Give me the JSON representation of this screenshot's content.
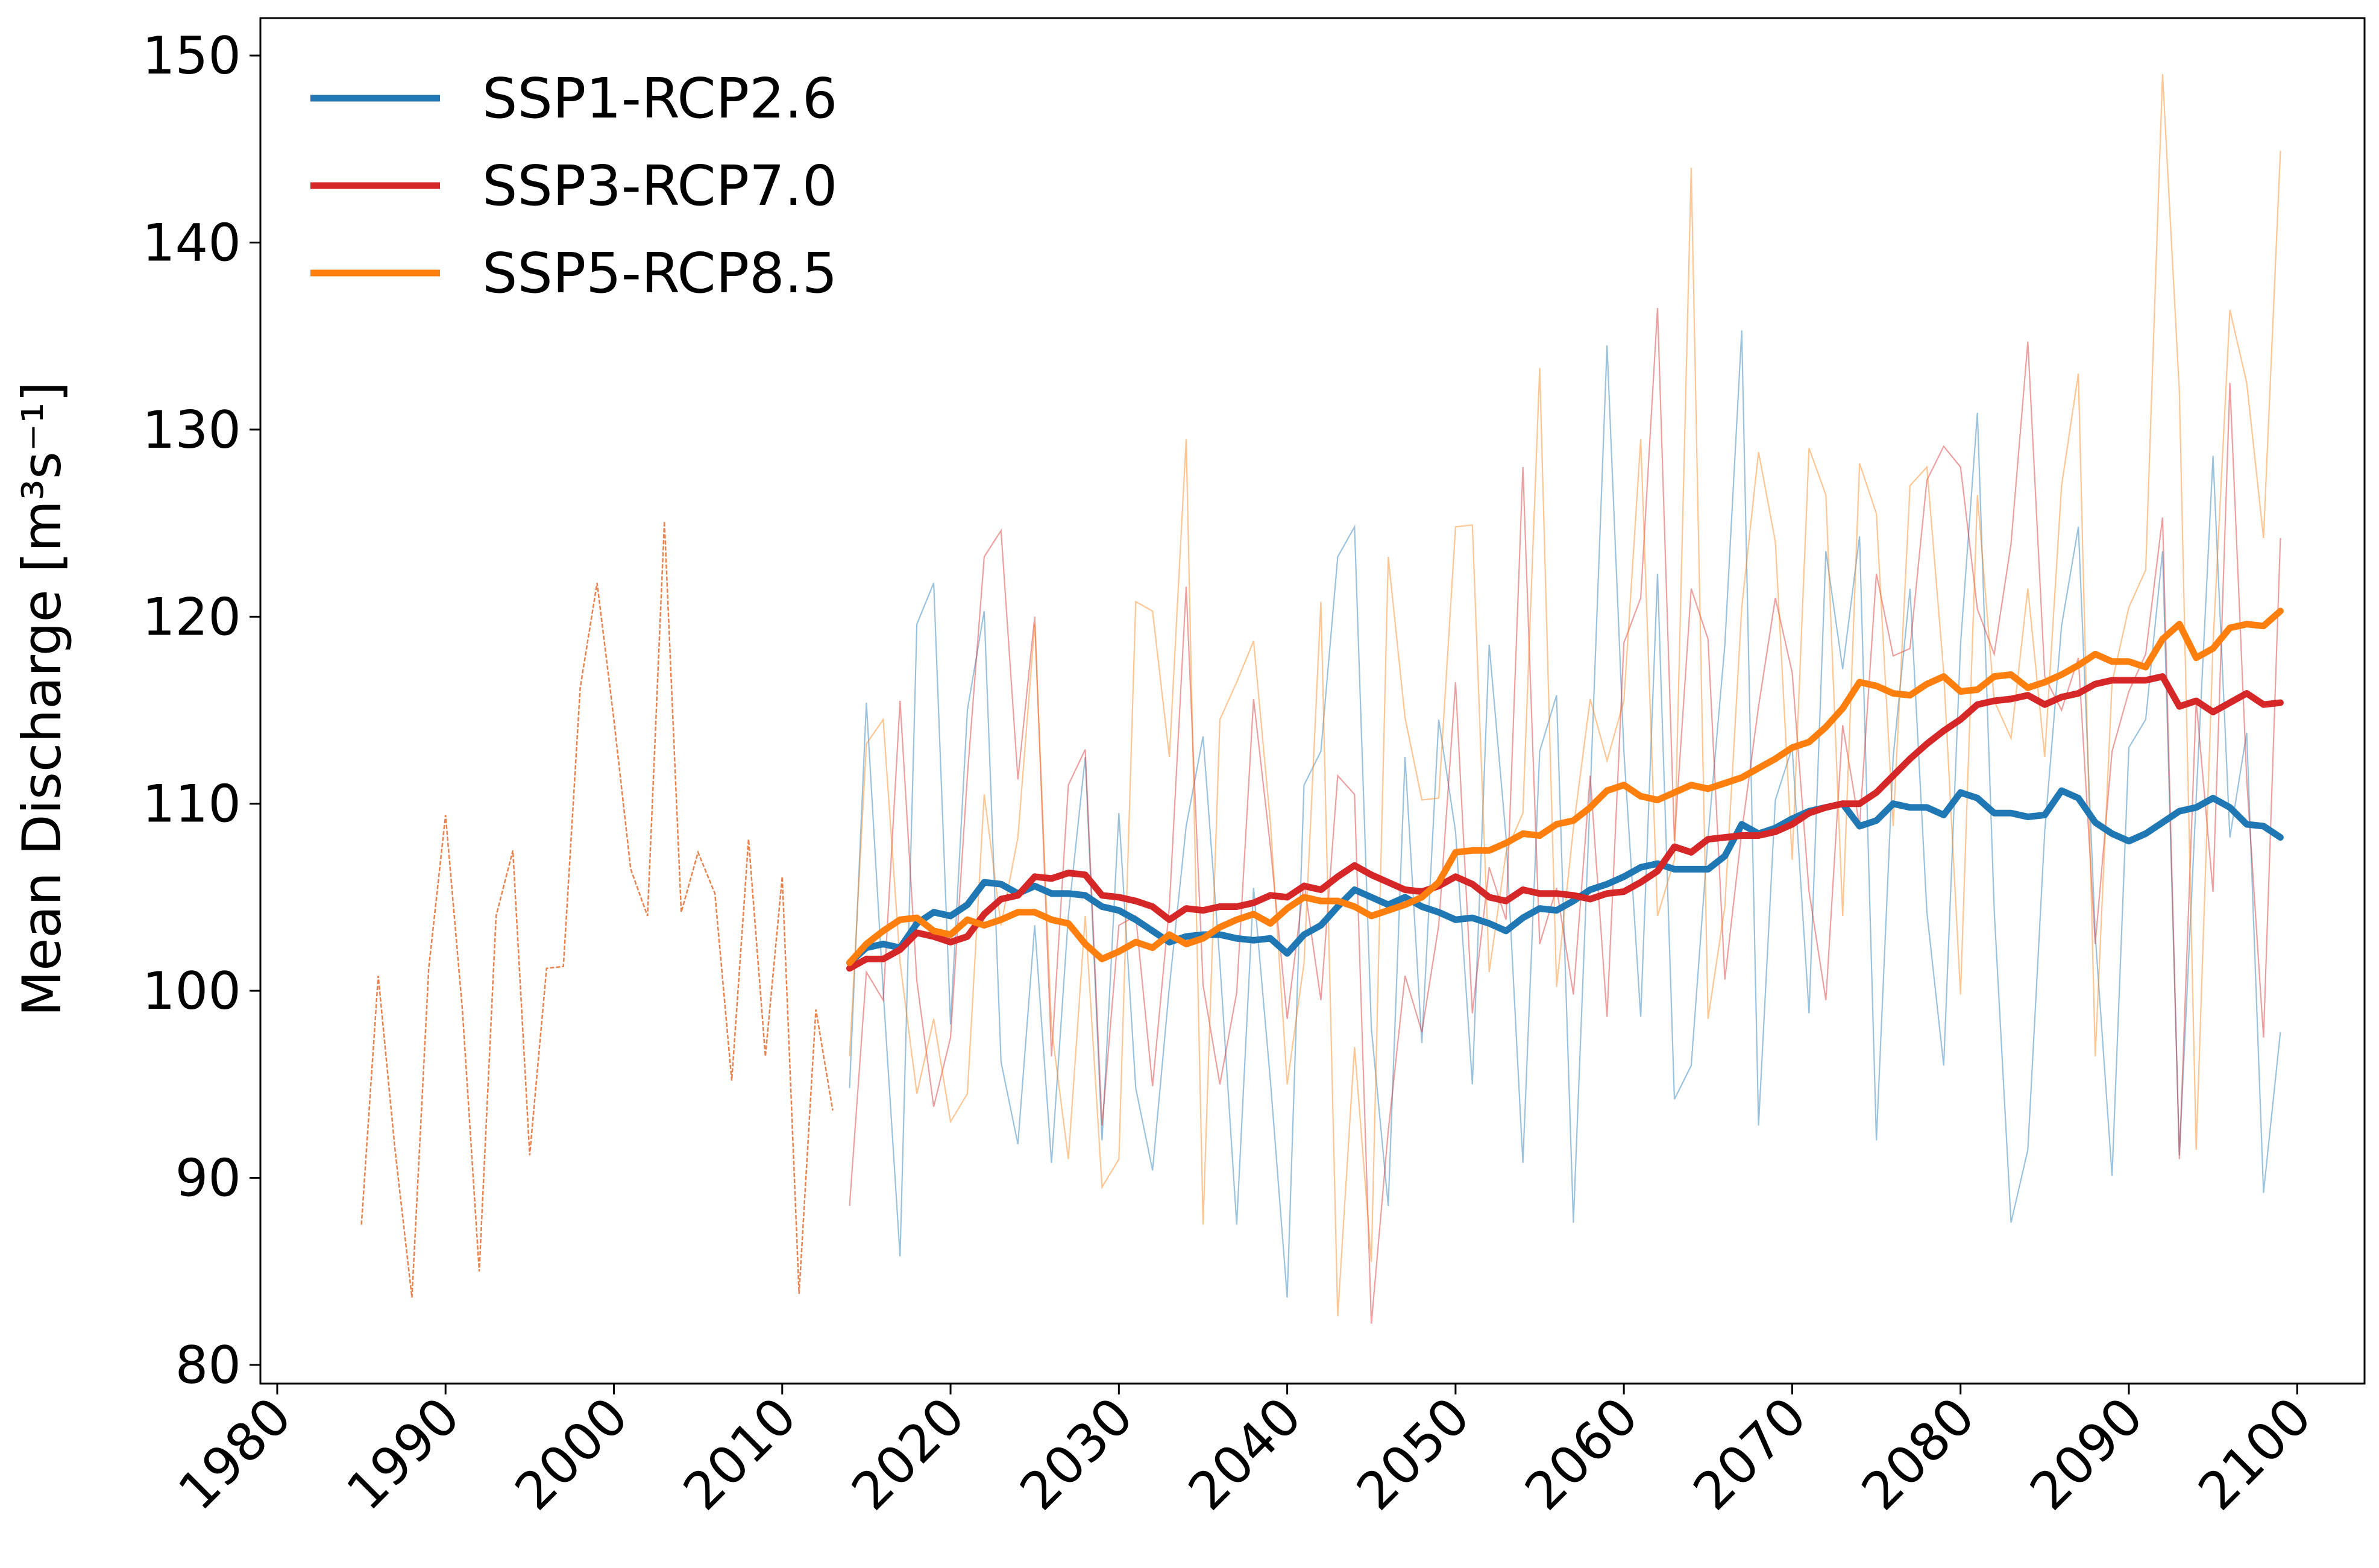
{
  "chart_data": {
    "type": "line",
    "ylabel": "Mean Discharge [m³s⁻¹]",
    "xlabel": "",
    "xlim": [
      1979,
      2104
    ],
    "ylim": [
      79,
      152
    ],
    "x_ticks": [
      "1980",
      "1990",
      "2000",
      "2010",
      "2020",
      "2030",
      "2040",
      "2050",
      "2060",
      "2070",
      "2080",
      "2090",
      "2100"
    ],
    "y_ticks": [
      "80",
      "90",
      "100",
      "110",
      "120",
      "130",
      "140",
      "150"
    ],
    "grid": false,
    "legend_position": "top-left",
    "historical": {
      "color": "#e8743b",
      "x": [
        1985,
        1986,
        1987,
        1988,
        1989,
        1990,
        1991,
        1992,
        1993,
        1994,
        1995,
        1996,
        1997,
        1998,
        1999,
        2000,
        2001,
        2002,
        2003,
        2004,
        2005,
        2006,
        2007,
        2008,
        2009,
        2010,
        2011,
        2012,
        2013
      ],
      "values": [
        87.5,
        100.8,
        91.5,
        83.6,
        101.2,
        109.4,
        99.0,
        85.0,
        104.0,
        107.5,
        91.2,
        101.2,
        101.3,
        116.2,
        121.8,
        114.5,
        106.5,
        104.0,
        125.1,
        104.2,
        107.4,
        105.2,
        95.2,
        108.1,
        96.5,
        106.1,
        83.8,
        99.0,
        93.6
      ]
    },
    "series": [
      {
        "name": "SSP1-RCP2.6",
        "color": "#1f77b4",
        "x": [
          2014,
          2015,
          2016,
          2017,
          2018,
          2019,
          2020,
          2021,
          2022,
          2023,
          2024,
          2025,
          2026,
          2027,
          2028,
          2029,
          2030,
          2031,
          2032,
          2033,
          2034,
          2035,
          2036,
          2037,
          2038,
          2039,
          2040,
          2041,
          2042,
          2043,
          2044,
          2045,
          2046,
          2047,
          2048,
          2049,
          2050,
          2051,
          2052,
          2053,
          2054,
          2055,
          2056,
          2057,
          2058,
          2059,
          2060,
          2061,
          2062,
          2063,
          2064,
          2065,
          2066,
          2067,
          2068,
          2069,
          2070,
          2071,
          2072,
          2073,
          2074,
          2075,
          2076,
          2077,
          2078,
          2079,
          2080,
          2081,
          2082,
          2083,
          2084,
          2085,
          2086,
          2087,
          2088,
          2089,
          2090,
          2091,
          2092,
          2093,
          2094,
          2095,
          2096,
          2097,
          2098,
          2099
        ],
        "values": [
          101.5,
          102.3,
          102.5,
          102.3,
          103.6,
          104.2,
          104.0,
          104.6,
          105.8,
          105.7,
          105.2,
          105.6,
          105.2,
          105.2,
          105.1,
          104.5,
          104.3,
          103.8,
          103.2,
          102.6,
          102.9,
          103.0,
          103.0,
          102.8,
          102.7,
          102.8,
          102.0,
          103.0,
          103.5,
          104.5,
          105.4,
          105.0,
          104.6,
          105.0,
          104.5,
          104.2,
          103.8,
          103.9,
          103.6,
          103.2,
          103.9,
          104.4,
          104.3,
          104.8,
          105.4,
          105.7,
          106.1,
          106.6,
          106.8,
          106.5,
          106.5,
          106.5,
          107.2,
          108.9,
          108.4,
          108.7,
          109.2,
          109.6,
          109.8,
          110.0,
          108.8,
          109.1,
          110.0,
          109.8,
          109.8,
          109.4,
          110.6,
          110.3,
          109.5,
          109.5,
          109.3,
          109.4,
          110.7,
          110.3,
          109.0,
          108.4,
          108.0,
          108.4,
          109.0,
          109.6,
          109.8,
          110.3,
          109.8,
          108.9,
          108.8,
          108.2
        ],
        "annual": [
          94.8,
          115.4,
          100.0,
          85.8,
          119.6,
          121.8,
          98.2,
          115.0,
          120.3,
          96.2,
          91.8,
          103.5,
          90.8,
          104.0,
          112.5,
          92.0,
          109.5,
          94.8,
          90.4,
          100.2,
          108.8,
          113.6,
          101.5,
          87.5,
          105.5,
          95.2,
          83.6,
          111.0,
          112.8,
          123.2,
          124.8,
          98.0,
          88.5,
          112.5,
          97.2,
          114.5,
          108.5,
          95.0,
          118.5,
          108.2,
          90.8,
          112.8,
          115.8,
          87.6,
          110.5,
          134.5,
          112.8,
          98.6,
          122.3,
          94.2,
          96.0,
          108.2,
          118.5,
          135.3,
          92.8,
          110.2,
          113.0,
          98.8,
          123.5,
          117.2,
          124.3,
          92.0,
          112.5,
          121.5,
          104.2,
          96.0,
          118.5,
          130.9,
          104.3,
          87.6,
          91.5,
          108.5,
          119.5,
          124.8,
          103.0,
          90.1,
          113.0,
          114.5,
          123.5,
          91.2,
          110.3,
          128.6,
          108.2,
          113.8,
          89.2,
          97.8
        ]
      },
      {
        "name": "SSP3-RCP7.0",
        "color": "#d62728",
        "x": [
          2014,
          2015,
          2016,
          2017,
          2018,
          2019,
          2020,
          2021,
          2022,
          2023,
          2024,
          2025,
          2026,
          2027,
          2028,
          2029,
          2030,
          2031,
          2032,
          2033,
          2034,
          2035,
          2036,
          2037,
          2038,
          2039,
          2040,
          2041,
          2042,
          2043,
          2044,
          2045,
          2046,
          2047,
          2048,
          2049,
          2050,
          2051,
          2052,
          2053,
          2054,
          2055,
          2056,
          2057,
          2058,
          2059,
          2060,
          2061,
          2062,
          2063,
          2064,
          2065,
          2066,
          2067,
          2068,
          2069,
          2070,
          2071,
          2072,
          2073,
          2074,
          2075,
          2076,
          2077,
          2078,
          2079,
          2080,
          2081,
          2082,
          2083,
          2084,
          2085,
          2086,
          2087,
          2088,
          2089,
          2090,
          2091,
          2092,
          2093,
          2094,
          2095,
          2096,
          2097,
          2098,
          2099
        ],
        "values": [
          101.2,
          101.7,
          101.7,
          102.2,
          103.1,
          102.9,
          102.6,
          102.9,
          104.1,
          104.9,
          105.1,
          106.1,
          106.0,
          106.3,
          106.2,
          105.1,
          105.0,
          104.8,
          104.5,
          103.8,
          104.4,
          104.3,
          104.5,
          104.5,
          104.7,
          105.1,
          105.0,
          105.6,
          105.4,
          106.1,
          106.7,
          106.2,
          105.8,
          105.4,
          105.3,
          105.6,
          106.1,
          105.7,
          105.0,
          104.8,
          105.4,
          105.2,
          105.2,
          105.1,
          104.9,
          105.2,
          105.3,
          105.8,
          106.4,
          107.7,
          107.4,
          108.1,
          108.2,
          108.3,
          108.3,
          108.5,
          108.9,
          109.5,
          109.8,
          110.0,
          110.0,
          110.6,
          111.5,
          112.4,
          113.2,
          113.9,
          114.5,
          115.3,
          115.5,
          115.6,
          115.8,
          115.3,
          115.7,
          115.9,
          116.4,
          116.6,
          116.6,
          116.6,
          116.8,
          115.2,
          115.5,
          114.9,
          115.4,
          115.9,
          115.3,
          115.4
        ],
        "annual": [
          88.5,
          101.0,
          99.5,
          115.5,
          100.5,
          93.8,
          97.5,
          111.5,
          123.2,
          124.6,
          111.3,
          120.0,
          96.5,
          111.0,
          112.9,
          92.8,
          103.5,
          104.0,
          94.9,
          104.5,
          121.6,
          100.3,
          95.0,
          99.9,
          115.6,
          107.7,
          98.5,
          105.8,
          99.5,
          111.5,
          110.5,
          82.2,
          92.5,
          100.8,
          97.8,
          103.5,
          116.5,
          98.8,
          106.6,
          103.8,
          128.0,
          102.5,
          105.5,
          99.8,
          111.5,
          98.6,
          118.6,
          121.0,
          136.5,
          108.0,
          121.5,
          118.8,
          100.6,
          108.5,
          115.2,
          121.0,
          117.0,
          105.3,
          99.5,
          114.2,
          108.8,
          122.3,
          117.9,
          118.3,
          127.3,
          129.1,
          128.0,
          120.4,
          118.0,
          123.9,
          134.7,
          116.8,
          115.0,
          117.8,
          102.5,
          112.8,
          116.0,
          118.0,
          125.3,
          91.0,
          115.5,
          105.3,
          132.5,
          111.3,
          97.5,
          124.2
        ]
      },
      {
        "name": "SSP5-RCP8.5",
        "color": "#ff7f0e",
        "x": [
          2014,
          2015,
          2016,
          2017,
          2018,
          2019,
          2020,
          2021,
          2022,
          2023,
          2024,
          2025,
          2026,
          2027,
          2028,
          2029,
          2030,
          2031,
          2032,
          2033,
          2034,
          2035,
          2036,
          2037,
          2038,
          2039,
          2040,
          2041,
          2042,
          2043,
          2044,
          2045,
          2046,
          2047,
          2048,
          2049,
          2050,
          2051,
          2052,
          2053,
          2054,
          2055,
          2056,
          2057,
          2058,
          2059,
          2060,
          2061,
          2062,
          2063,
          2064,
          2065,
          2066,
          2067,
          2068,
          2069,
          2070,
          2071,
          2072,
          2073,
          2074,
          2075,
          2076,
          2077,
          2078,
          2079,
          2080,
          2081,
          2082,
          2083,
          2084,
          2085,
          2086,
          2087,
          2088,
          2089,
          2090,
          2091,
          2092,
          2093,
          2094,
          2095,
          2096,
          2097,
          2098,
          2099
        ],
        "values": [
          101.5,
          102.5,
          103.2,
          103.8,
          103.9,
          103.2,
          103.0,
          103.8,
          103.5,
          103.8,
          104.2,
          104.2,
          103.8,
          103.6,
          102.5,
          101.7,
          102.1,
          102.6,
          102.3,
          103.0,
          102.5,
          102.8,
          103.4,
          103.8,
          104.1,
          103.6,
          104.4,
          105.0,
          104.8,
          104.8,
          104.5,
          104.0,
          104.3,
          104.6,
          105.0,
          105.8,
          107.4,
          107.5,
          107.5,
          107.9,
          108.4,
          108.3,
          108.9,
          109.1,
          109.8,
          110.7,
          111.0,
          110.4,
          110.2,
          110.6,
          111.0,
          110.8,
          111.1,
          111.4,
          111.9,
          112.4,
          113.0,
          113.3,
          114.1,
          115.1,
          116.5,
          116.3,
          115.9,
          115.8,
          116.4,
          116.8,
          116.0,
          116.1,
          116.8,
          116.9,
          116.2,
          116.5,
          116.9,
          117.4,
          118.0,
          117.6,
          117.6,
          117.3,
          118.8,
          119.6,
          117.8,
          118.3,
          119.4,
          119.6,
          119.5,
          120.3
        ],
        "annual": [
          96.5,
          113.2,
          114.5,
          101.5,
          94.5,
          98.5,
          93.0,
          94.5,
          110.5,
          103.5,
          108.2,
          119.6,
          98.0,
          91.0,
          104.0,
          89.5,
          91.0,
          120.8,
          120.3,
          112.5,
          129.5,
          87.5,
          114.5,
          116.5,
          118.7,
          109.0,
          95.0,
          101.5,
          120.8,
          82.6,
          97.0,
          85.5,
          123.2,
          114.6,
          110.2,
          110.3,
          124.8,
          124.9,
          101.0,
          107.4,
          109.5,
          133.3,
          100.2,
          108.7,
          115.6,
          112.3,
          115.5,
          129.5,
          104.0,
          107.0,
          144.0,
          98.5,
          104.5,
          120.5,
          128.8,
          124.0,
          107.0,
          129.0,
          126.5,
          104.0,
          128.2,
          125.5,
          108.8,
          127.0,
          128.0,
          117.0,
          99.8,
          126.5,
          115.5,
          113.5,
          121.5,
          112.5,
          127.0,
          133.0,
          96.5,
          116.5,
          120.5,
          122.5,
          149.0,
          132.0,
          91.5,
          118.5,
          136.4,
          132.5,
          124.2,
          144.9
        ]
      }
    ]
  }
}
